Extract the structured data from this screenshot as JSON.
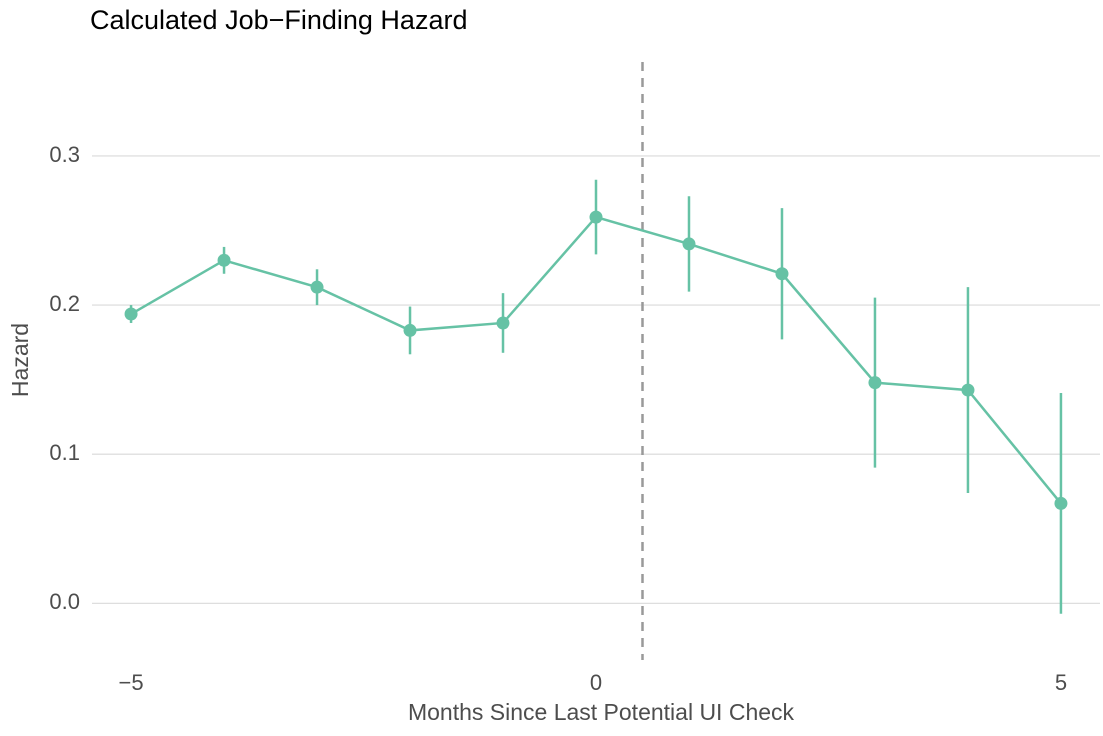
{
  "chart_data": {
    "type": "line",
    "title": "Calculated Job−Finding Hazard",
    "x_label": "Months Since Last Potential UI Check",
    "y_label": "Hazard",
    "x": [
      -5,
      -4,
      -3,
      -2,
      -1,
      0,
      1,
      2,
      3,
      4,
      5
    ],
    "series": [
      {
        "name": "Hazard",
        "color": "#66c2a5",
        "values": [
          0.194,
          0.23,
          0.212,
          0.183,
          0.188,
          0.259,
          0.241,
          0.221,
          0.148,
          0.143,
          0.067
        ],
        "errors": [
          0.006,
          0.009,
          0.012,
          0.016,
          0.02,
          0.025,
          0.032,
          0.044,
          0.057,
          0.069,
          0.074
        ]
      }
    ],
    "xlim": [
      -5.42,
      5.42
    ],
    "xticks": [
      {
        "value": -5,
        "label": "−5"
      },
      0,
      5
    ],
    "ylim": [
      -0.038,
      0.363
    ],
    "yticks": [
      {
        "value": 0,
        "label": "0.0"
      },
      0.1,
      0.2,
      0.3
    ],
    "vline": 0.5,
    "grid": true
  }
}
